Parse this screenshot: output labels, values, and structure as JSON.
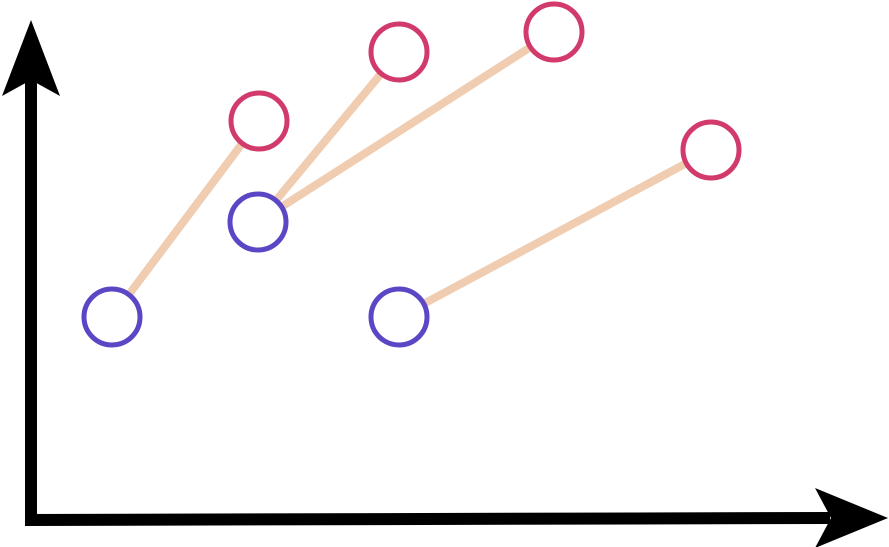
{
  "diagram": {
    "axes": {
      "color": "#000000"
    },
    "colors": {
      "source": "#5b47c6",
      "target": "#d13a6a",
      "link": "#f0ccb0"
    },
    "nodes": [
      {
        "id": "s1",
        "role": "source"
      },
      {
        "id": "s2",
        "role": "source"
      },
      {
        "id": "s3",
        "role": "source"
      },
      {
        "id": "t1",
        "role": "target"
      },
      {
        "id": "t2",
        "role": "target"
      },
      {
        "id": "t3",
        "role": "target"
      },
      {
        "id": "t4",
        "role": "target"
      }
    ],
    "links": [
      {
        "from": "s1",
        "to": "t1"
      },
      {
        "from": "s2",
        "to": "t2"
      },
      {
        "from": "s2",
        "to": "t3"
      },
      {
        "from": "s3",
        "to": "t4"
      }
    ]
  }
}
